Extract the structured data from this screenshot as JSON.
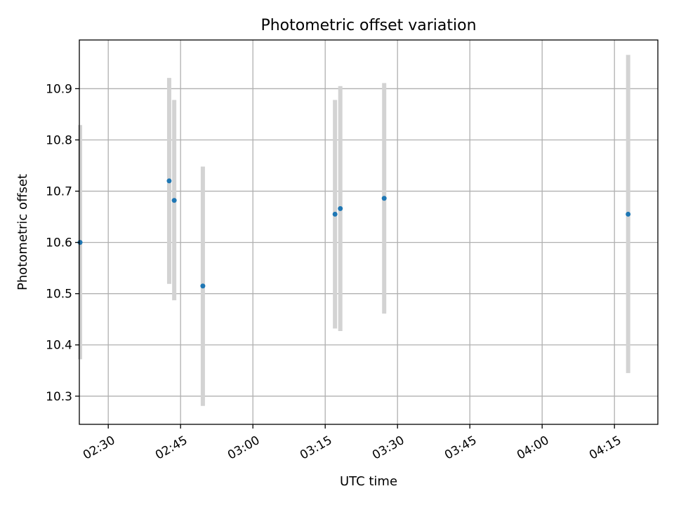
{
  "chart_data": {
    "type": "scatter",
    "title": "Photometric offset variation",
    "xlabel": "UTC time",
    "ylabel": "Photometric offset",
    "x_axis_type": "time",
    "xlim": [
      "02:24",
      "04:24"
    ],
    "ylim": [
      10.245,
      10.995
    ],
    "grid": true,
    "x_ticks": [
      "02:30",
      "02:45",
      "03:00",
      "03:15",
      "03:30",
      "03:45",
      "04:00",
      "04:15"
    ],
    "y_ticks": [
      "10.3",
      "10.4",
      "10.5",
      "10.6",
      "10.7",
      "10.8",
      "10.9"
    ],
    "series": [
      {
        "marker_color": "#1f77b4",
        "errorbar_color": "#d3d3d3",
        "points": [
          {
            "x": "02:24:09",
            "y": 10.6,
            "err_low": 10.372,
            "err_high": 10.829
          },
          {
            "x": "02:42:38",
            "y": 10.72,
            "err_low": 10.519,
            "err_high": 10.921
          },
          {
            "x": "02:43:41",
            "y": 10.682,
            "err_low": 10.487,
            "err_high": 10.878
          },
          {
            "x": "02:49:37",
            "y": 10.515,
            "err_low": 10.281,
            "err_high": 10.748
          },
          {
            "x": "03:17:02",
            "y": 10.655,
            "err_low": 10.432,
            "err_high": 10.878
          },
          {
            "x": "03:18:08",
            "y": 10.666,
            "err_low": 10.427,
            "err_high": 10.905
          },
          {
            "x": "03:27:14",
            "y": 10.686,
            "err_low": 10.461,
            "err_high": 10.911
          },
          {
            "x": "04:17:50",
            "y": 10.655,
            "err_low": 10.345,
            "err_high": 10.966
          }
        ]
      }
    ]
  }
}
